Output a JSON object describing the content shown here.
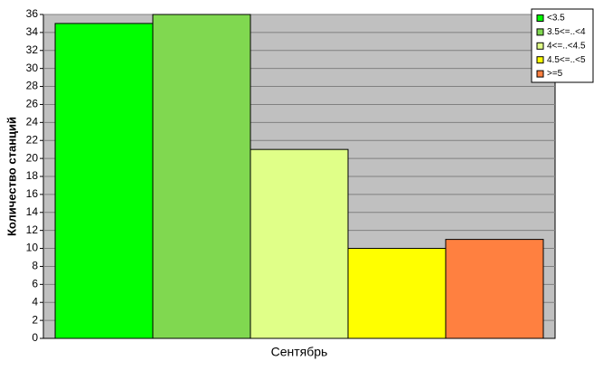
{
  "chart_data": {
    "type": "bar",
    "y_label": "Количество станций",
    "categories": [
      "Сентябрь"
    ],
    "series": [
      {
        "name": "<3.5",
        "color": "#00ff00",
        "values": [
          35
        ]
      },
      {
        "name": "3.5<=..<4",
        "color": "#80d850",
        "values": [
          36
        ]
      },
      {
        "name": "4<=..<4.5",
        "color": "#e0ff88",
        "values": [
          21
        ]
      },
      {
        "name": "4.5<=..<5",
        "color": "#ffff00",
        "values": [
          10
        ]
      },
      {
        "name": ">=5",
        "color": "#ff8040",
        "values": [
          11
        ]
      }
    ],
    "ylim": [
      0,
      36
    ],
    "yticks": [
      0,
      2,
      4,
      6,
      8,
      10,
      12,
      14,
      16,
      18,
      20,
      22,
      24,
      26,
      28,
      30,
      32,
      34,
      36
    ],
    "grid": true,
    "legend": "top-right"
  }
}
